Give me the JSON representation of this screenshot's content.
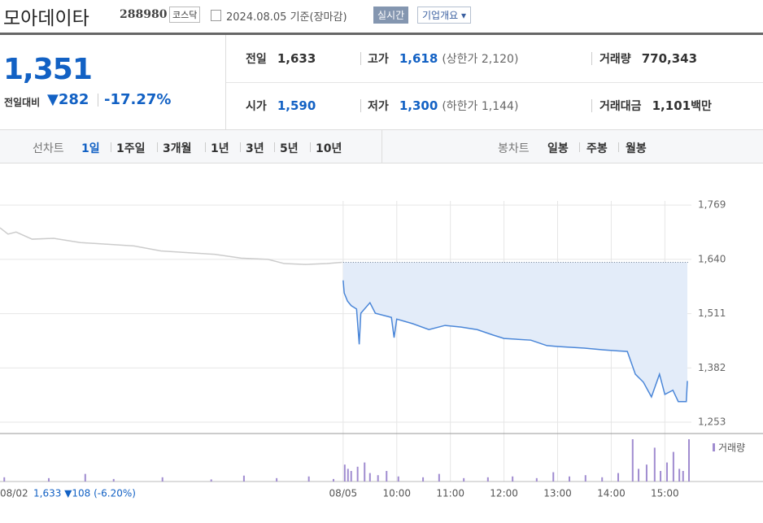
{
  "header": {
    "name": "모아데이타",
    "code": "288980",
    "market": "코스닥",
    "date": "2024.08.05",
    "basis": "기준(장마감)",
    "realtime": "실시간",
    "overview": "기업개요"
  },
  "quote": {
    "price": "1,351",
    "change_label": "전일대비",
    "change": "282",
    "rate": "-17.27%"
  },
  "summary": [
    {
      "label": "전일",
      "value": "1,633"
    },
    {
      "label": "고가",
      "value": "1,618",
      "note": "(상한가 2,120)"
    },
    {
      "label": "거래량",
      "value": "770,343"
    },
    {
      "label": "시가",
      "value": "1,590"
    },
    {
      "label": "저가",
      "value": "1,300",
      "note": "(하한가 1,144)"
    },
    {
      "label": "거래대금",
      "value": "1,101",
      "unit": "백만"
    }
  ],
  "tabs": {
    "line_label": "선차트",
    "periods": [
      "1일",
      "1주일",
      "3개월",
      "1년",
      "3년",
      "5년",
      "10년"
    ],
    "candle_label": "봉차트",
    "candles": [
      "일봉",
      "주봉",
      "월봉"
    ]
  },
  "chart_data": {
    "type": "line",
    "xlim": [
      2.6,
      15.45
    ],
    "ylim": [
      1226,
      1866
    ],
    "xticks": [
      {
        "value": 2.6,
        "label": "08/02"
      },
      {
        "value": 9,
        "label": "08/05"
      },
      {
        "value": 10,
        "label": "10:00"
      },
      {
        "value": 11,
        "label": "11:00"
      },
      {
        "value": 12,
        "label": "12:00"
      },
      {
        "value": 13,
        "label": "13:00"
      },
      {
        "value": 14,
        "label": "14:00"
      },
      {
        "value": 15,
        "label": "15:00"
      }
    ],
    "yticks": [
      {
        "value": 1769,
        "label": "1,769"
      },
      {
        "value": 1640,
        "label": "1,640"
      },
      {
        "value": 1511,
        "label": "1,511"
      },
      {
        "value": 1382,
        "label": "1,382"
      },
      {
        "value": 1253,
        "label": "1,253"
      }
    ],
    "grid": true,
    "baseline": 1633,
    "prev_day_note": "1,633 ▼108 (-6.20%)",
    "series": [
      {
        "color": "#cccccc",
        "x": [
          2.6,
          2.75,
          2.9,
          3.2,
          3.6,
          4.1,
          4.6,
          5.1,
          5.6,
          6.1,
          6.6,
          7.1,
          7.6,
          7.9,
          8.3,
          8.7,
          8.98
        ],
        "values": [
          1715,
          1700,
          1705,
          1688,
          1690,
          1680,
          1676,
          1672,
          1660,
          1656,
          1652,
          1643,
          1640,
          1630,
          1628,
          1630,
          1633
        ]
      },
      {
        "color": "#4a86d8",
        "fill": "#e3ecf9",
        "x": [
          9.0,
          9.02,
          9.08,
          9.15,
          9.25,
          9.3,
          9.33,
          9.5,
          9.6,
          9.9,
          9.95,
          10.0,
          10.3,
          10.6,
          10.9,
          11.2,
          11.5,
          11.8,
          12.0,
          12.5,
          12.8,
          13.0,
          13.5,
          13.85,
          14.3,
          14.45,
          14.6,
          14.75,
          14.9,
          15.0,
          15.15,
          15.25,
          15.35,
          15.4,
          15.42
        ],
        "values": [
          1590,
          1560,
          1541,
          1530,
          1522,
          1438,
          1512,
          1537,
          1512,
          1502,
          1454,
          1498,
          1487,
          1473,
          1483,
          1479,
          1473,
          1460,
          1452,
          1448,
          1435,
          1433,
          1429,
          1425,
          1421,
          1367,
          1348,
          1313,
          1367,
          1319,
          1329,
          1302,
          1302,
          1302,
          1351
        ]
      }
    ],
    "volume": {
      "name": "거래량",
      "color": "#a08cd0",
      "ylim": [
        0,
        100
      ],
      "x": [
        2.68,
        3.51,
        4.19,
        4.72,
        5.63,
        6.54,
        7.15,
        7.76,
        8.36,
        8.82,
        9.03,
        9.09,
        9.15,
        9.27,
        9.4,
        9.5,
        9.65,
        9.81,
        10.03,
        10.49,
        10.79,
        11.25,
        11.7,
        12.16,
        12.61,
        12.92,
        13.22,
        13.52,
        13.83,
        14.13,
        14.4,
        14.51,
        14.66,
        14.81,
        14.92,
        15.04,
        15.16,
        15.27,
        15.34,
        15.45
      ],
      "values": [
        10,
        8,
        18,
        6,
        10,
        5,
        14,
        8,
        12,
        6,
        40,
        30,
        25,
        35,
        45,
        20,
        15,
        25,
        12,
        10,
        18,
        8,
        10,
        12,
        8,
        22,
        12,
        15,
        10,
        20,
        100,
        30,
        40,
        80,
        25,
        45,
        70,
        30,
        25,
        100
      ]
    }
  }
}
